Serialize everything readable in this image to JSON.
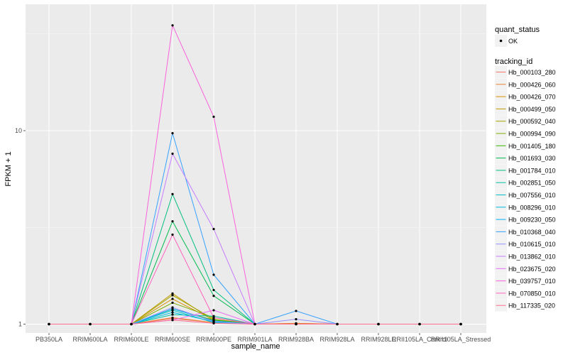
{
  "chart_data": {
    "type": "line",
    "xlabel": "sample_name",
    "ylabel": "FPKM + 1",
    "y_scale": "log10",
    "ylim": [
      0.9,
      45
    ],
    "y_ticks": [
      {
        "value": 1,
        "label": "1"
      },
      {
        "value": 10,
        "label": "10"
      }
    ],
    "categories": [
      "PB350LA",
      "RRIM600LA",
      "RRIM600LE",
      "RRIM600SE",
      "RRIM600PE",
      "RRIM901LA",
      "RRIM928BA",
      "RRIM928LA",
      "RRIM928LE",
      "RRII105LA_Control",
      "RRII105LA_Stressed"
    ],
    "grid": true,
    "background": "#ebebeb",
    "legend_position": "right",
    "legend": {
      "shape_title": "quant_status",
      "shape_entries": [
        "OK"
      ],
      "color_title": "tracking_id"
    },
    "series": [
      {
        "name": "Hb_000103_280",
        "color": "#F8766D",
        "values": [
          1,
          1,
          1,
          1.07,
          1.02,
          1,
          1.01,
          1,
          1,
          1,
          1
        ]
      },
      {
        "name": "Hb_000426_060",
        "color": "#EA8331",
        "values": [
          1,
          1,
          1,
          1.08,
          1.02,
          1,
          1.01,
          1,
          1,
          1,
          1
        ]
      },
      {
        "name": "Hb_000426_070",
        "color": "#D89000",
        "values": [
          1,
          1,
          1,
          1.35,
          1.05,
          1,
          1,
          1,
          1,
          1,
          1
        ]
      },
      {
        "name": "Hb_000499_050",
        "color": "#C09B00",
        "values": [
          1,
          1,
          1,
          1.44,
          1.04,
          1,
          1,
          1,
          1,
          1,
          1
        ]
      },
      {
        "name": "Hb_000592_040",
        "color": "#A3A500",
        "values": [
          1,
          1,
          1,
          1.41,
          1.06,
          1,
          1,
          1,
          1,
          1,
          1
        ]
      },
      {
        "name": "Hb_000994_090",
        "color": "#7CAE00",
        "values": [
          1,
          1,
          1,
          1.29,
          1.08,
          1,
          1,
          1,
          1,
          1,
          1
        ]
      },
      {
        "name": "Hb_001405_180",
        "color": "#39B600",
        "values": [
          1,
          1,
          1,
          1.2,
          1.05,
          1,
          1,
          1,
          1,
          1,
          1
        ]
      },
      {
        "name": "Hb_001693_030",
        "color": "#00BB4E",
        "values": [
          1,
          1,
          1,
          3.4,
          1.4,
          1,
          1,
          1,
          1,
          1,
          1
        ]
      },
      {
        "name": "Hb_001784_010",
        "color": "#00BF7D",
        "values": [
          1,
          1,
          1,
          4.7,
          1.5,
          1,
          1,
          1,
          1,
          1,
          1
        ]
      },
      {
        "name": "Hb_002851_050",
        "color": "#00C1A3",
        "values": [
          1,
          1,
          1,
          1.12,
          1.1,
          1,
          1,
          1,
          1,
          1,
          1
        ]
      },
      {
        "name": "Hb_007556_010",
        "color": "#00BFC4",
        "values": [
          1,
          1,
          1,
          1.18,
          1.02,
          1,
          1,
          1,
          1,
          1,
          1
        ]
      },
      {
        "name": "Hb_008296_010",
        "color": "#00BAE0",
        "values": [
          1,
          1,
          1,
          1.15,
          1.03,
          1,
          1,
          1,
          1,
          1,
          1
        ]
      },
      {
        "name": "Hb_009230_050",
        "color": "#00B0F6",
        "values": [
          1,
          1,
          1,
          1.2,
          1.04,
          1,
          1,
          1,
          1,
          1,
          1
        ]
      },
      {
        "name": "Hb_010368_040",
        "color": "#35A2FF",
        "values": [
          1,
          1,
          1,
          9.7,
          1.8,
          1,
          1.17,
          1,
          1,
          1,
          1
        ]
      },
      {
        "name": "Hb_010615_010",
        "color": "#9590FF",
        "values": [
          1,
          1,
          1,
          1.22,
          1.03,
          1,
          1.06,
          1,
          1,
          1,
          1
        ]
      },
      {
        "name": "Hb_013862_010",
        "color": "#C77CFF",
        "values": [
          1,
          1,
          1,
          7.6,
          3.1,
          1,
          1,
          1,
          1,
          1,
          1
        ]
      },
      {
        "name": "Hb_023675_020",
        "color": "#E76BF3",
        "values": [
          1,
          1,
          1,
          1.05,
          1.18,
          1,
          1,
          1,
          1,
          1,
          1
        ]
      },
      {
        "name": "Hb_039757_010",
        "color": "#FA62DB",
        "values": [
          1,
          1,
          1,
          35,
          11.8,
          1,
          1,
          1,
          1,
          1,
          1
        ]
      },
      {
        "name": "Hb_070850_010",
        "color": "#FF62BC",
        "values": [
          1,
          1,
          1,
          2.9,
          1.08,
          1,
          1,
          1,
          1,
          1,
          1
        ]
      },
      {
        "name": "Hb_117335_020",
        "color": "#FF6C91",
        "values": [
          1,
          1,
          1,
          1.05,
          1.01,
          1,
          1,
          1,
          1,
          1,
          1
        ]
      }
    ]
  }
}
